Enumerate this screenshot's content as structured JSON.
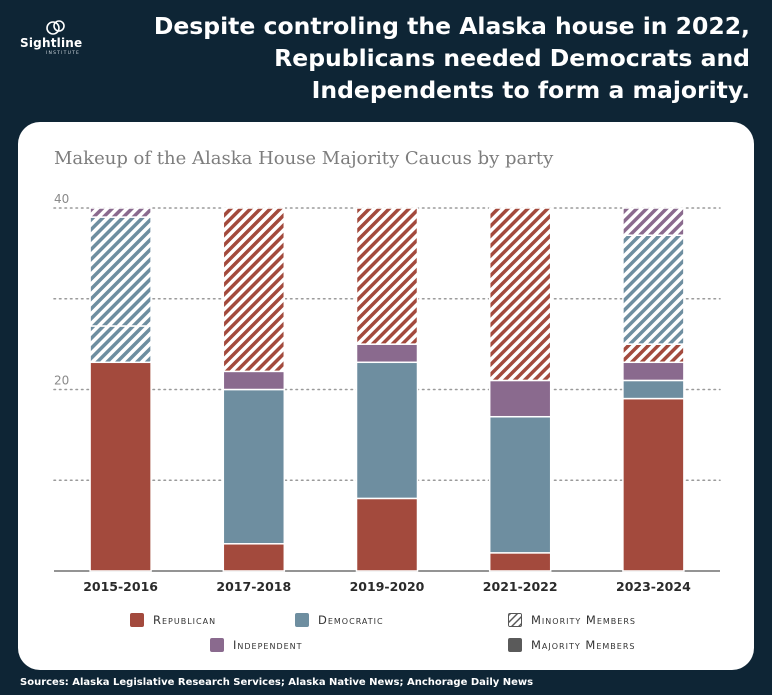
{
  "header": {
    "logo_text": "Sightline",
    "logo_subtext": "INSTITUTE",
    "headline": "Despite controling the Alaska house in 2022, Republicans needed Democrats and Independents to form a majority."
  },
  "colors": {
    "background": "#0e2535",
    "republican": "#a34a3d",
    "democratic": "#6e8ea0",
    "independent": "#8a6a8e",
    "majority": "#5a5a5a"
  },
  "legend": {
    "republican": "Republican",
    "democratic": "Democratic",
    "minority": "Minority Members",
    "independent": "Independent",
    "majority": "Majority Members"
  },
  "footer": {
    "sources": "Sources: Alaska Legislative Research Services; Alaska Native News; Anchorage Daily News"
  },
  "chart_data": {
    "type": "bar",
    "stacked": true,
    "title": "Makeup of the Alaska House Majority Caucus by party",
    "xlabel": "",
    "ylabel": "",
    "ylim": [
      0,
      40
    ],
    "yticks_labeled": [
      20,
      40
    ],
    "gridlines": [
      10,
      20,
      30,
      40
    ],
    "categories": [
      "2015-2016",
      "2017-2018",
      "2019-2020",
      "2021-2022",
      "2023-2024"
    ],
    "segments": [
      [
        {
          "party": "Republican",
          "membership": "Majority Members",
          "value": 23
        },
        {
          "party": "Democratic",
          "membership": "Minority Members",
          "value": 4
        },
        {
          "party": "Democratic",
          "membership": "Minority Members",
          "value": 12
        },
        {
          "party": "Independent",
          "membership": "Minority Members",
          "value": 1
        }
      ],
      [
        {
          "party": "Republican",
          "membership": "Majority Members",
          "value": 3
        },
        {
          "party": "Democratic",
          "membership": "Majority Members",
          "value": 17
        },
        {
          "party": "Independent",
          "membership": "Majority Members",
          "value": 2
        },
        {
          "party": "Republican",
          "membership": "Minority Members",
          "value": 18
        }
      ],
      [
        {
          "party": "Republican",
          "membership": "Majority Members",
          "value": 8
        },
        {
          "party": "Democratic",
          "membership": "Majority Members",
          "value": 15
        },
        {
          "party": "Independent",
          "membership": "Majority Members",
          "value": 2
        },
        {
          "party": "Republican",
          "membership": "Minority Members",
          "value": 15
        }
      ],
      [
        {
          "party": "Republican",
          "membership": "Majority Members",
          "value": 2
        },
        {
          "party": "Democratic",
          "membership": "Majority Members",
          "value": 15
        },
        {
          "party": "Independent",
          "membership": "Majority Members",
          "value": 4
        },
        {
          "party": "Republican",
          "membership": "Minority Members",
          "value": 19
        }
      ],
      [
        {
          "party": "Republican",
          "membership": "Majority Members",
          "value": 19
        },
        {
          "party": "Democratic",
          "membership": "Majority Members",
          "value": 2
        },
        {
          "party": "Independent",
          "membership": "Majority Members",
          "value": 2
        },
        {
          "party": "Republican",
          "membership": "Minority Members",
          "value": 2
        },
        {
          "party": "Democratic",
          "membership": "Minority Members",
          "value": 12
        },
        {
          "party": "Independent",
          "membership": "Minority Members",
          "value": 3
        }
      ]
    ]
  }
}
